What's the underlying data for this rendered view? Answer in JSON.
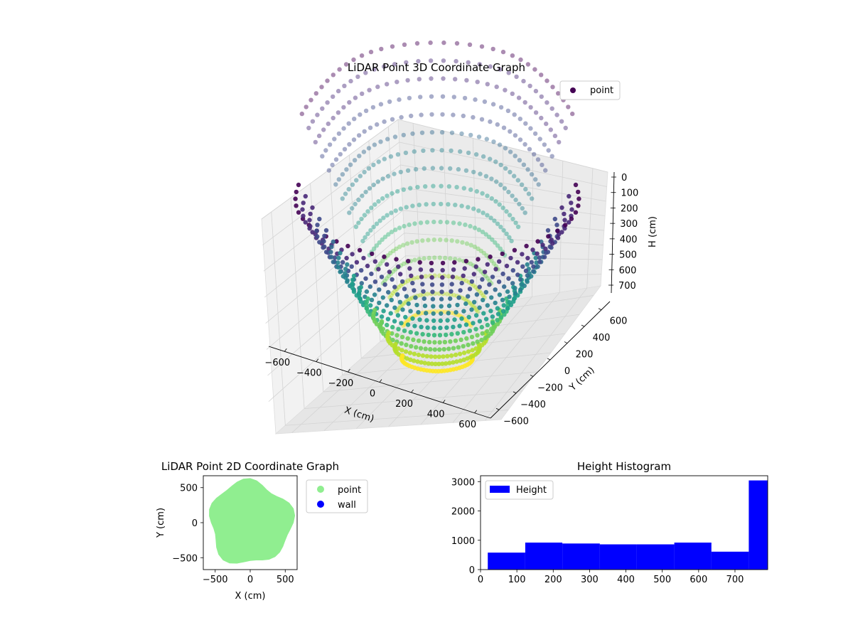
{
  "chart_data": [
    {
      "type": "scatter",
      "title": "LiDAR Point 3D Coordinate Graph",
      "xlabel": "X (cm)",
      "ylabel": "Y (cm)",
      "zlabel": "H (cm)",
      "xlim": [
        -700,
        700
      ],
      "ylim": [
        -700,
        700
      ],
      "zlim": [
        0,
        780
      ],
      "z_inverted": true,
      "x_ticks": [
        "−600",
        "−400",
        "−200",
        "0",
        "200",
        "400",
        "600"
      ],
      "y_ticks": [
        "−600",
        "−400",
        "−200",
        "0",
        "200",
        "400",
        "600"
      ],
      "z_ticks": [
        "0",
        "100",
        "200",
        "300",
        "400",
        "500",
        "600",
        "700"
      ],
      "legend": {
        "placement": "top-right",
        "entries": [
          "point"
        ]
      },
      "grid": true,
      "colormap": "viridis",
      "colors": {
        "marker": "#440154",
        "legend_marker": "#440154"
      }
    },
    {
      "type": "scatter",
      "title": "LiDAR Point 2D Coordinate Graph",
      "xlabel": "X (cm)",
      "ylabel": "Y (cm)",
      "xlim": [
        -670,
        670
      ],
      "ylim": [
        -670,
        670
      ],
      "x_ticks": [
        -500,
        0,
        500
      ],
      "y_ticks": [
        -500,
        0,
        500
      ],
      "tick_labels_x": [
        "−500",
        "0",
        "500"
      ],
      "tick_labels_y": [
        "−500",
        "0",
        "500"
      ],
      "series": [
        {
          "name": "point",
          "color": "#90ee90"
        },
        {
          "name": "wall",
          "color": "#0000ff"
        }
      ],
      "legend": {
        "placement": "outside-right",
        "entries": [
          "point",
          "wall"
        ]
      },
      "grid": false
    },
    {
      "type": "bar",
      "title": "Height Histogram",
      "bins": [
        {
          "x0": 20,
          "x1": 123,
          "count": 580
        },
        {
          "x0": 123,
          "x1": 225,
          "count": 920
        },
        {
          "x0": 225,
          "x1": 328,
          "count": 890
        },
        {
          "x0": 328,
          "x1": 430,
          "count": 860
        },
        {
          "x0": 430,
          "x1": 533,
          "count": 860
        },
        {
          "x0": 533,
          "x1": 635,
          "count": 920
        },
        {
          "x0": 635,
          "x1": 738,
          "count": 610
        },
        {
          "x0": 738,
          "x1": 790,
          "count": 3040
        }
      ],
      "xlim": [
        0,
        790
      ],
      "ylim": [
        0,
        3200
      ],
      "x_ticks": [
        0,
        100,
        200,
        300,
        400,
        500,
        600,
        700
      ],
      "y_ticks": [
        0,
        1000,
        2000,
        3000
      ],
      "series": [
        {
          "name": "Height",
          "color": "#0000ff"
        }
      ],
      "legend": {
        "placement": "top-left",
        "entries": [
          "Height"
        ]
      },
      "grid": false
    }
  ]
}
